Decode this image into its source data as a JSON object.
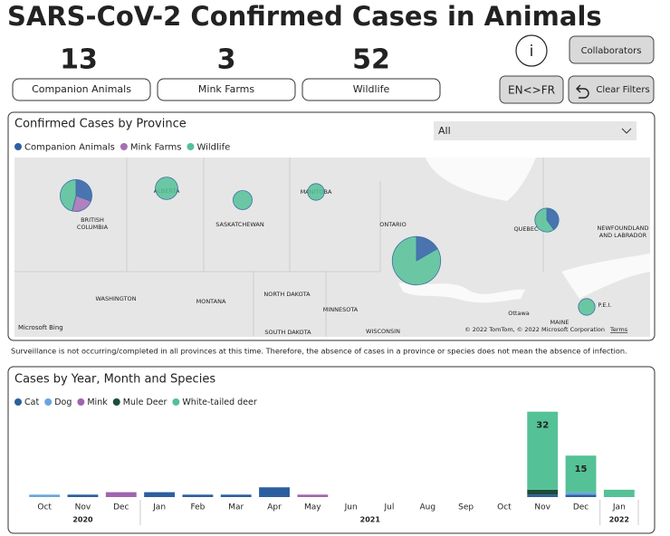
{
  "title": "SARS-CoV-2 Confirmed Cases in Animals",
  "kpis": [
    {
      "value": 13,
      "label": "Companion Animals"
    },
    {
      "value": 3,
      "label": "Mink Farms"
    },
    {
      "value": 52,
      "label": "Wildlife"
    }
  ],
  "buttons": {
    "info": "i",
    "collaborators": "Collaborators",
    "language": "EN<>FR",
    "clear": "Clear Filters"
  },
  "map": {
    "title": "Confirmed Cases by Province",
    "dropdown": "All",
    "series": [
      {
        "name": "Companion Animals",
        "color": "#2e5fa6"
      },
      {
        "name": "Mink Farms",
        "color": "#a66fb5"
      },
      {
        "name": "Wildlife",
        "color": "#55c196"
      }
    ],
    "pies": [
      {
        "values": [
          4,
          3,
          6
        ]
      },
      {
        "values": [
          0,
          0,
          4
        ]
      },
      {
        "values": [
          0,
          0,
          2
        ]
      },
      {
        "values": [
          0,
          0,
          1
        ]
      },
      {
        "values": [
          7,
          0,
          35
        ]
      },
      {
        "values": [
          2,
          0,
          3
        ]
      },
      {
        "values": [
          0,
          0,
          1
        ]
      }
    ],
    "places": [
      [
        "BRITISH",
        "COLUMBIA"
      ],
      [
        "ALBERTA"
      ],
      [
        "SASKATCHEWAN"
      ],
      [
        "MANITOBA"
      ],
      [
        "ONTARIO"
      ],
      [
        "QUEBEC"
      ],
      [
        "NEWFOUNDLAND",
        "AND LABRADOR"
      ],
      [
        "WASHINGTON"
      ],
      [
        "MONTANA"
      ],
      [
        "NORTH DAKOTA"
      ],
      [
        "MINNESOTA"
      ],
      [
        "SOUTH DAKOTA"
      ],
      [
        "WISCONSIN"
      ],
      [
        "Ottawa"
      ],
      [
        "MAINE"
      ],
      [
        "P.E.I."
      ]
    ],
    "attribution": "Microsoft Bing",
    "copyright": "© 2022 TomTom, © 2022 Microsoft Corporation",
    "terms": "Terms"
  },
  "note": "Surveillance is not occurring/completed in all provinces at this time. Therefore, the absence of cases in a province or species does not mean the absence of infection.",
  "chart_data": {
    "type": "stacked_bar",
    "title": "Cases by Year, Month and Species",
    "categories": [
      "Oct",
      "Nov",
      "Dec",
      "Jan",
      "Feb",
      "Mar",
      "Apr",
      "May",
      "Jun",
      "Jul",
      "Aug",
      "Sep",
      "Oct",
      "Nov",
      "Dec",
      "Jan"
    ],
    "years": [
      {
        "label": "2020",
        "from": 0,
        "to": 2
      },
      {
        "label": "2021",
        "from": 3,
        "to": 14
      },
      {
        "label": "2022",
        "from": 15,
        "to": 15
      }
    ],
    "series": [
      {
        "name": "Cat",
        "color": "#2b5fa0",
        "values": [
          0,
          1,
          0,
          2,
          1,
          1,
          4,
          0,
          0,
          0,
          0,
          0,
          0,
          1,
          1,
          0
        ]
      },
      {
        "name": "Dog",
        "color": "#6aa6dc",
        "values": [
          1,
          0,
          0,
          0,
          0,
          0,
          0,
          0,
          0,
          0,
          0,
          0,
          0,
          0,
          1,
          0
        ]
      },
      {
        "name": "Mink",
        "color": "#a164b0",
        "values": [
          0,
          0,
          2,
          0,
          0,
          0,
          0,
          1,
          0,
          0,
          0,
          0,
          0,
          0,
          0,
          0
        ]
      },
      {
        "name": "Mule Deer",
        "color": "#1b4d3a",
        "values": [
          0,
          0,
          0,
          0,
          0,
          0,
          0,
          0,
          0,
          0,
          0,
          0,
          0,
          2,
          0,
          0
        ]
      },
      {
        "name": "White-tailed deer",
        "color": "#55c196",
        "values": [
          0,
          0,
          0,
          0,
          0,
          0,
          0,
          0,
          0,
          0,
          0,
          0,
          0,
          32,
          15,
          3
        ]
      }
    ],
    "ylim": [
      0,
      36
    ]
  }
}
